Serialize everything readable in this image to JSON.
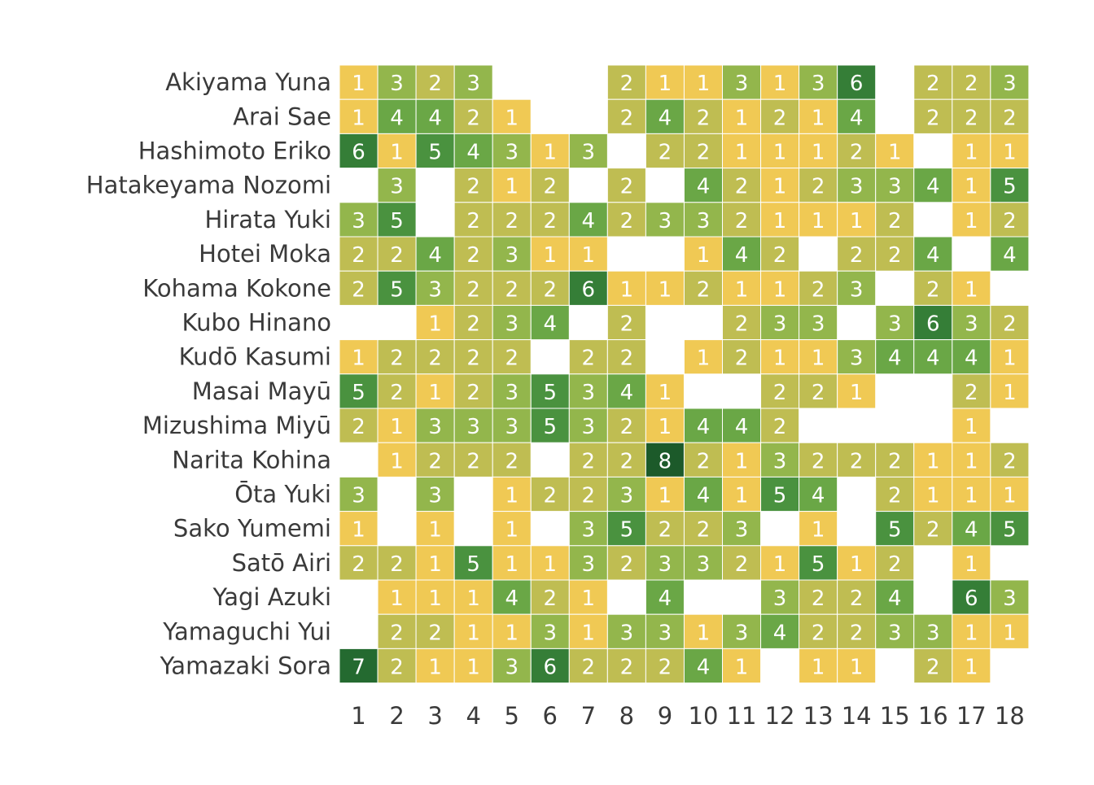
{
  "chart_data": {
    "type": "heatmap",
    "title": "",
    "xlabel": "",
    "ylabel": "",
    "x": [
      "1",
      "2",
      "3",
      "4",
      "5",
      "6",
      "7",
      "8",
      "9",
      "10",
      "11",
      "12",
      "13",
      "14",
      "15",
      "16",
      "17",
      "18"
    ],
    "y": [
      "Akiyama Yuna",
      "Arai Sae",
      "Hashimoto Eriko",
      "Hatakeyama Nozomi",
      "Hirata Yuki",
      "Hotei Moka",
      "Kohama Kokone",
      "Kubo Hinano",
      "Kudō Kasumi",
      "Masai Mayū",
      "Mizushima Miyū",
      "Narita Kohina",
      "Ōta Yuki",
      "Sako Yumemi",
      "Satō Airi",
      "Yagi Azuki",
      "Yamaguchi Yui",
      "Yamazaki Sora"
    ],
    "values": [
      [
        1,
        3,
        2,
        3,
        null,
        null,
        null,
        2,
        1,
        1,
        3,
        1,
        3,
        6,
        null,
        2,
        2,
        3
      ],
      [
        1,
        4,
        4,
        2,
        1,
        null,
        null,
        2,
        4,
        2,
        1,
        2,
        1,
        4,
        null,
        2,
        2,
        2
      ],
      [
        6,
        1,
        5,
        4,
        3,
        1,
        3,
        null,
        2,
        2,
        1,
        1,
        1,
        2,
        1,
        null,
        1,
        1
      ],
      [
        null,
        3,
        null,
        2,
        1,
        2,
        null,
        2,
        null,
        4,
        2,
        1,
        2,
        3,
        3,
        4,
        1,
        5
      ],
      [
        3,
        5,
        null,
        2,
        2,
        2,
        4,
        2,
        3,
        3,
        2,
        1,
        1,
        1,
        2,
        null,
        1,
        2
      ],
      [
        2,
        2,
        4,
        2,
        3,
        1,
        1,
        null,
        null,
        1,
        4,
        2,
        null,
        2,
        2,
        4,
        null,
        4
      ],
      [
        2,
        5,
        3,
        2,
        2,
        2,
        6,
        1,
        1,
        2,
        1,
        1,
        2,
        3,
        null,
        2,
        1,
        null
      ],
      [
        null,
        null,
        1,
        2,
        3,
        4,
        null,
        2,
        null,
        null,
        2,
        3,
        3,
        null,
        3,
        6,
        3,
        2
      ],
      [
        1,
        2,
        2,
        2,
        2,
        null,
        2,
        2,
        null,
        1,
        2,
        1,
        1,
        3,
        4,
        4,
        4,
        1
      ],
      [
        5,
        2,
        1,
        2,
        3,
        5,
        3,
        4,
        1,
        null,
        null,
        2,
        2,
        1,
        null,
        null,
        2,
        1
      ],
      [
        2,
        1,
        3,
        3,
        3,
        5,
        3,
        2,
        1,
        4,
        4,
        2,
        null,
        null,
        null,
        null,
        1,
        null
      ],
      [
        null,
        1,
        2,
        2,
        2,
        null,
        2,
        2,
        8,
        2,
        1,
        3,
        2,
        2,
        2,
        1,
        1,
        2
      ],
      [
        3,
        null,
        3,
        null,
        1,
        2,
        2,
        3,
        1,
        4,
        1,
        5,
        4,
        null,
        2,
        1,
        1,
        1
      ],
      [
        1,
        null,
        1,
        null,
        1,
        null,
        3,
        5,
        2,
        2,
        3,
        null,
        1,
        null,
        5,
        2,
        4,
        5
      ],
      [
        2,
        2,
        1,
        5,
        1,
        1,
        3,
        2,
        3,
        3,
        2,
        1,
        5,
        1,
        2,
        null,
        1,
        null
      ],
      [
        null,
        1,
        1,
        1,
        4,
        2,
        1,
        null,
        4,
        null,
        null,
        3,
        2,
        2,
        4,
        null,
        6,
        3
      ],
      [
        null,
        2,
        2,
        1,
        1,
        3,
        1,
        3,
        3,
        1,
        3,
        4,
        2,
        2,
        3,
        3,
        1,
        1
      ],
      [
        7,
        2,
        1,
        1,
        3,
        6,
        2,
        2,
        2,
        4,
        1,
        null,
        1,
        1,
        null,
        2,
        1,
        null
      ]
    ],
    "color_scale": {
      "1": "#f0c954",
      "2": "#bfbd52",
      "3": "#93b64c",
      "4": "#6aa746",
      "5": "#4a923f",
      "6": "#357e37",
      "7": "#246a30",
      "8": "#1c5a2a"
    },
    "grid": false,
    "legend": "none"
  }
}
